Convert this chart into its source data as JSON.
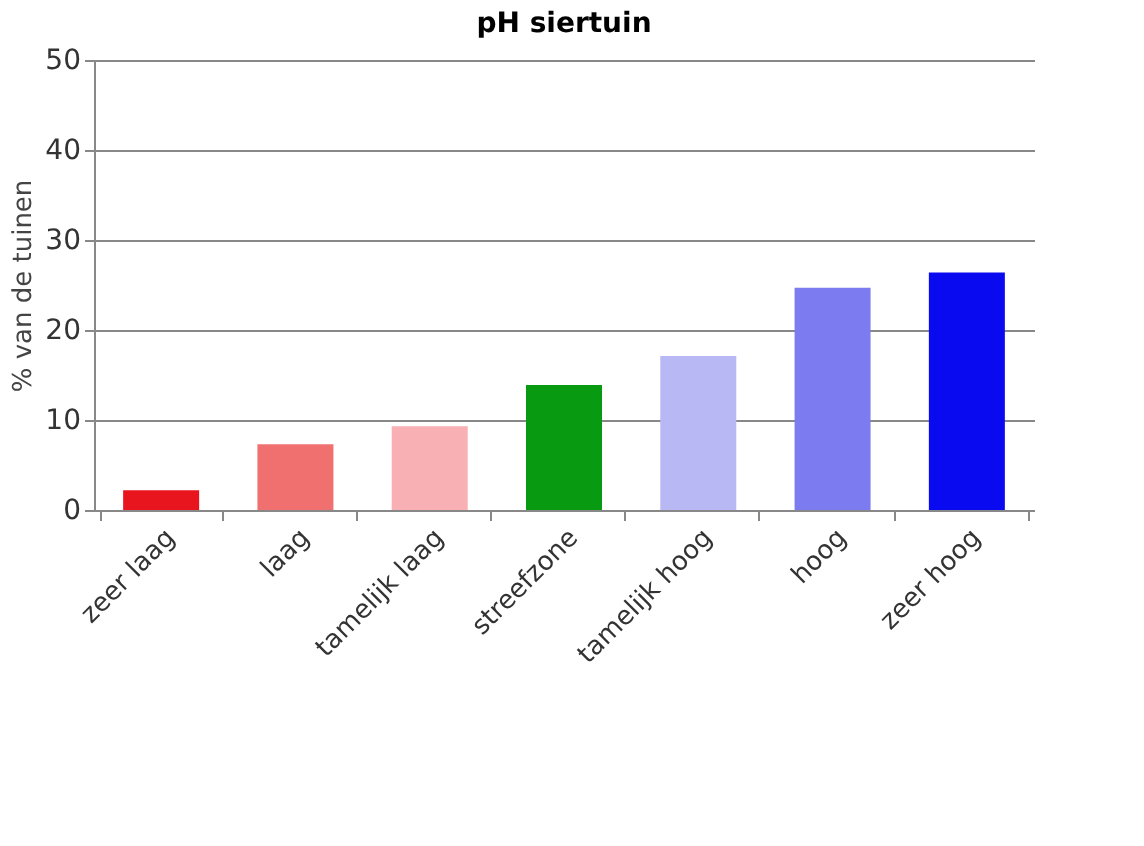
{
  "chart_data": {
    "type": "bar",
    "title": "pH siertuin",
    "ylabel": "% van de tuinen",
    "categories": [
      "zeer laag",
      "laag",
      "tamelijk laag",
      "streefzone",
      "tamelijk hoog",
      "hoog",
      "zeer hoog"
    ],
    "values": [
      2.2,
      7.3,
      9.3,
      13.9,
      17.1,
      24.7,
      26.4
    ],
    "colors": [
      "#e8141e",
      "#f07070",
      "#f8b0b4",
      "#089a10",
      "#b8b8f4",
      "#7c7cf0",
      "#0a0af0"
    ],
    "ylim": [
      0,
      50
    ],
    "yticks": [
      0,
      10,
      20,
      30,
      40,
      50
    ],
    "grid": "y"
  }
}
